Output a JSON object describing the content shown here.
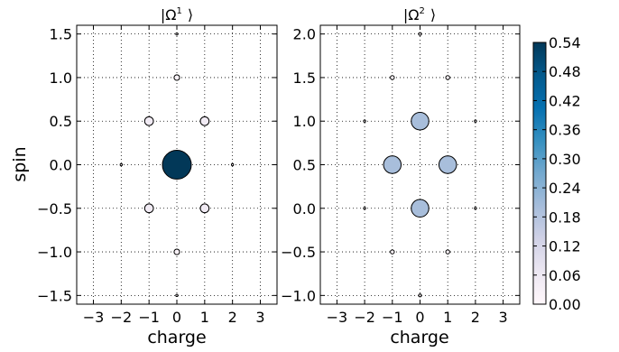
{
  "chart_data": [
    {
      "type": "scatter",
      "title": "|Ω¹⟩",
      "title_main": "|Ω",
      "title_sup": "1",
      "title_close": "⟩",
      "xlabel": "charge",
      "ylabel": "spin",
      "xlim": [
        -3.6,
        3.6
      ],
      "ylim": [
        -1.6,
        1.6
      ],
      "xticks": [
        -3,
        -2,
        -1,
        0,
        1,
        2,
        3
      ],
      "xtick_labels": [
        "−3",
        "−2",
        "−1",
        "0",
        "1",
        "2",
        "3"
      ],
      "yticks": [
        -1.5,
        -1.0,
        -0.5,
        0.0,
        0.5,
        1.0,
        1.5
      ],
      "ytick_labels": [
        "−1.5",
        "−1.0",
        "−0.5",
        "0.0",
        "0.5",
        "1.0",
        "1.5"
      ],
      "grid": true,
      "points": [
        {
          "x": 0,
          "y": 0,
          "value": 0.54
        },
        {
          "x": 0,
          "y": 1.0,
          "value": 0.02
        },
        {
          "x": 0,
          "y": -1.0,
          "value": 0.02
        },
        {
          "x": -1,
          "y": 0.5,
          "value": 0.05
        },
        {
          "x": 1,
          "y": 0.5,
          "value": 0.05
        },
        {
          "x": -1,
          "y": -0.5,
          "value": 0.05
        },
        {
          "x": 1,
          "y": -0.5,
          "value": 0.05
        },
        {
          "x": -2,
          "y": 0,
          "value": 0.003
        },
        {
          "x": 2,
          "y": 0,
          "value": 0.003
        },
        {
          "x": 0,
          "y": 1.5,
          "value": 0.0
        },
        {
          "x": 0,
          "y": -1.5,
          "value": 0.0
        }
      ]
    },
    {
      "type": "scatter",
      "title": "|Ω²⟩",
      "title_main": "|Ω",
      "title_sup": "2",
      "title_close": "⟩",
      "xlabel": "charge",
      "ylabel": "",
      "xlim": [
        -3.6,
        3.6
      ],
      "ylim": [
        -1.1,
        2.1
      ],
      "xticks": [
        -3,
        -2,
        -1,
        0,
        1,
        2,
        3
      ],
      "xtick_labels": [
        "−3",
        "−2",
        "−1",
        "0",
        "1",
        "2",
        "3"
      ],
      "yticks": [
        -1.0,
        -0.5,
        0.0,
        0.5,
        1.0,
        1.5,
        2.0
      ],
      "ytick_labels": [
        "−1.0",
        "−0.5",
        "0.0",
        "0.5",
        "1.0",
        "1.5",
        "2.0"
      ],
      "grid": true,
      "points": [
        {
          "x": 0,
          "y": 1.0,
          "value": 0.2
        },
        {
          "x": 0,
          "y": 0.0,
          "value": 0.2
        },
        {
          "x": -1,
          "y": 0.5,
          "value": 0.2
        },
        {
          "x": 1,
          "y": 0.5,
          "value": 0.2
        },
        {
          "x": -1,
          "y": 1.5,
          "value": 0.01
        },
        {
          "x": 1,
          "y": 1.5,
          "value": 0.01
        },
        {
          "x": -1,
          "y": -0.5,
          "value": 0.01
        },
        {
          "x": 1,
          "y": -0.5,
          "value": 0.01
        },
        {
          "x": 0,
          "y": 2.0,
          "value": 0.005
        },
        {
          "x": 0,
          "y": -1.0,
          "value": 0.005
        },
        {
          "x": -2,
          "y": 1.0,
          "value": 0.001
        },
        {
          "x": 2,
          "y": 1.0,
          "value": 0.001
        },
        {
          "x": -2,
          "y": 0.0,
          "value": 0.001
        },
        {
          "x": 2,
          "y": 0.0,
          "value": 0.001
        }
      ]
    }
  ],
  "colorbar": {
    "min": 0.0,
    "max": 0.54,
    "ticks": [
      0.0,
      0.06,
      0.12,
      0.18,
      0.24,
      0.3,
      0.36,
      0.42,
      0.48,
      0.54
    ],
    "tick_labels": [
      "0.00",
      "0.06",
      "0.12",
      "0.18",
      "0.24",
      "0.30",
      "0.36",
      "0.42",
      "0.48",
      "0.54"
    ],
    "colormap": [
      "#fff7fb",
      "#ece7f2",
      "#d0d1e6",
      "#a6bddb",
      "#74a9cf",
      "#3690c0",
      "#0570b0",
      "#045a8d",
      "#023858"
    ]
  }
}
